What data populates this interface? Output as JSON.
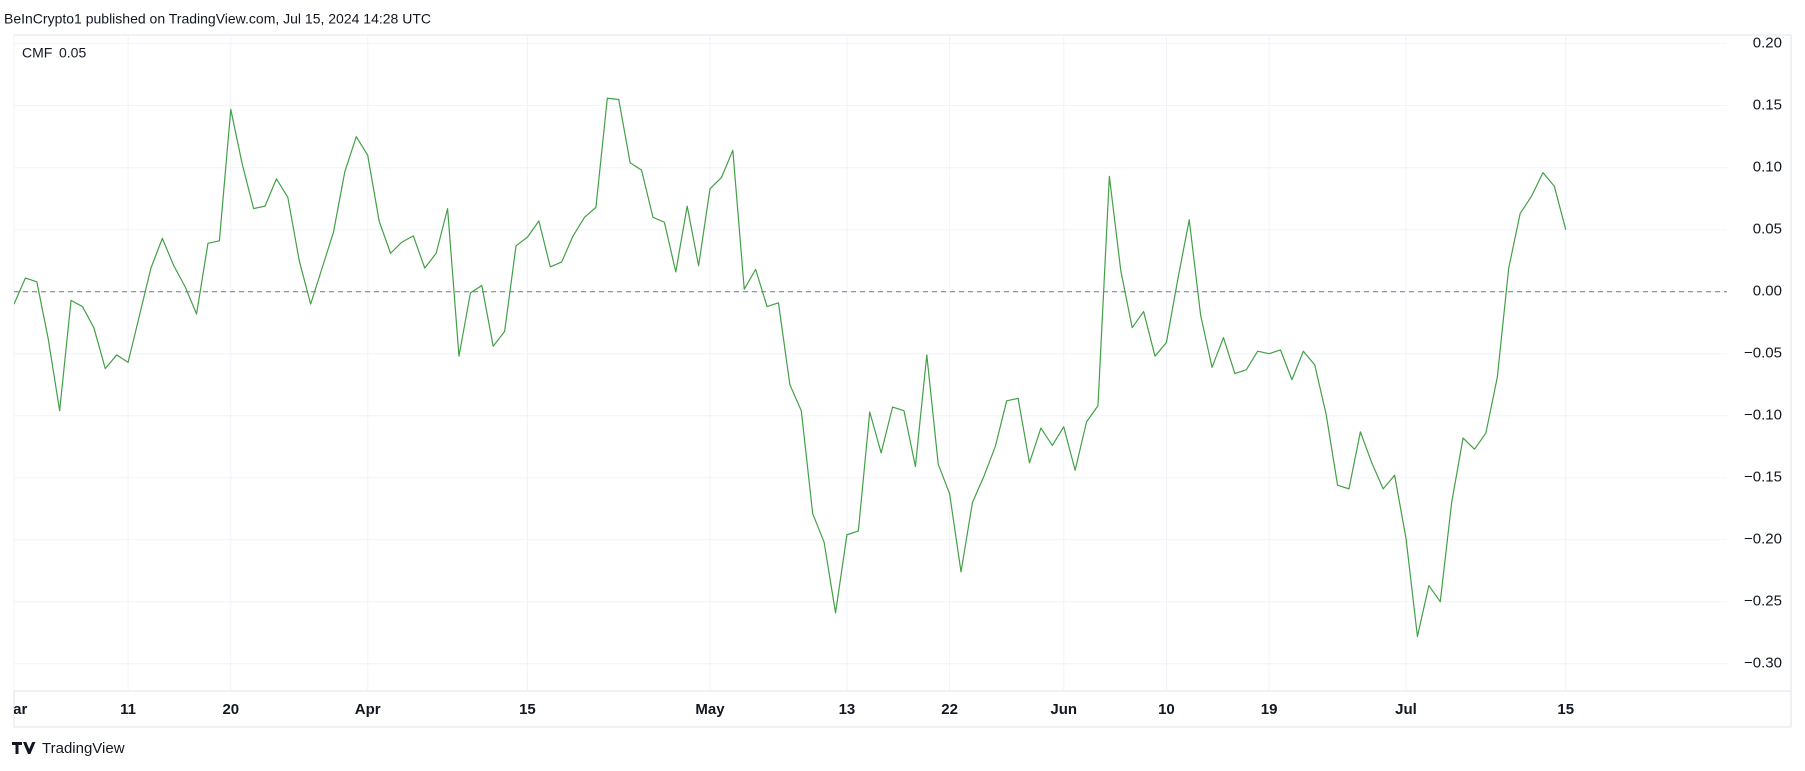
{
  "header": "BeInCrypto1 published on TradingView.com, Jul 15, 2024 14:28 UTC",
  "footer": "TradingView",
  "chart_data": {
    "type": "line",
    "categories": [
      "Mar",
      null,
      null,
      null,
      null,
      null,
      null,
      null,
      null,
      null,
      "11",
      null,
      null,
      null,
      null,
      null,
      null,
      null,
      null,
      "20",
      null,
      null,
      null,
      null,
      null,
      null,
      null,
      null,
      null,
      null,
      null,
      "Apr",
      null,
      null,
      null,
      null,
      null,
      null,
      null,
      null,
      null,
      null,
      null,
      null,
      null,
      "15",
      null,
      null,
      null,
      null,
      null,
      null,
      null,
      null,
      null,
      null,
      null,
      null,
      null,
      null,
      null,
      "May",
      null,
      null,
      null,
      null,
      null,
      null,
      null,
      null,
      null,
      null,
      null,
      "13",
      null,
      null,
      null,
      null,
      null,
      null,
      null,
      null,
      "22",
      null,
      null,
      null,
      null,
      null,
      null,
      null,
      null,
      null,
      "Jun",
      null,
      null,
      null,
      null,
      null,
      null,
      null,
      null,
      "10",
      null,
      null,
      null,
      null,
      null,
      null,
      null,
      null,
      "19",
      null,
      null,
      null,
      null,
      null,
      null,
      null,
      null,
      null,
      null,
      null,
      "Jul",
      null,
      null,
      null,
      null,
      null,
      null,
      null,
      null,
      null,
      null,
      null,
      null,
      null,
      "15"
    ],
    "series": [
      {
        "name": "CMF",
        "color": "#43a047",
        "values": [
          -0.01,
          0.011,
          0.008,
          -0.038,
          -0.096,
          -0.007,
          -0.012,
          -0.029,
          -0.062,
          -0.051,
          -0.057,
          -0.019,
          0.019,
          0.043,
          0.021,
          0.004,
          -0.018,
          0.039,
          0.041,
          0.147,
          0.103,
          0.067,
          0.069,
          0.091,
          0.076,
          0.025,
          -0.01,
          0.019,
          0.048,
          0.097,
          0.125,
          0.11,
          0.057,
          0.031,
          0.04,
          0.045,
          0.019,
          0.031,
          0.067,
          -0.052,
          -0.001,
          0.005,
          -0.044,
          -0.032,
          0.037,
          0.044,
          0.057,
          0.02,
          0.024,
          0.045,
          0.06,
          0.068,
          0.156,
          0.155,
          0.104,
          0.098,
          0.06,
          0.056,
          0.016,
          0.069,
          0.021,
          0.083,
          0.092,
          0.114,
          0.002,
          0.018,
          -0.012,
          -0.009,
          -0.075,
          -0.096,
          -0.179,
          -0.202,
          -0.259,
          -0.196,
          -0.193,
          -0.097,
          -0.13,
          -0.093,
          -0.096,
          -0.141,
          -0.051,
          -0.139,
          -0.163,
          -0.226,
          -0.17,
          -0.149,
          -0.125,
          -0.088,
          -0.086,
          -0.138,
          -0.11,
          -0.124,
          -0.109,
          -0.144,
          -0.105,
          -0.092,
          0.093,
          0.017,
          -0.029,
          -0.016,
          -0.052,
          -0.041,
          0.01,
          0.058,
          -0.019,
          -0.061,
          -0.037,
          -0.066,
          -0.063,
          -0.048,
          -0.05,
          -0.047,
          -0.071,
          -0.048,
          -0.059,
          -0.099,
          -0.156,
          -0.159,
          -0.113,
          -0.138,
          -0.159,
          -0.148,
          -0.199,
          -0.278,
          -0.237,
          -0.25,
          -0.17,
          -0.118,
          -0.127,
          -0.114,
          -0.069,
          0.019,
          0.063,
          0.077,
          0.096,
          0.085,
          0.05
        ]
      }
    ],
    "baseline": 0,
    "ylim": [
      -0.322,
      0.207
    ],
    "yticks": [
      {
        "value": 0.2,
        "label": "0.20"
      },
      0.15,
      {
        "value": 0.1,
        "label": "0.10"
      },
      0.05,
      {
        "value": 0,
        "label": "0.00"
      },
      {
        "value": -0.05,
        "label": "−0.05"
      },
      {
        "value": -0.1,
        "label": "−0.10"
      },
      {
        "value": -0.15,
        "label": "−0.15"
      },
      {
        "value": -0.2,
        "label": "−0.20"
      },
      {
        "value": -0.25,
        "label": "−0.25"
      },
      {
        "value": -0.3,
        "label": "−0.30"
      }
    ],
    "grid": true
  }
}
